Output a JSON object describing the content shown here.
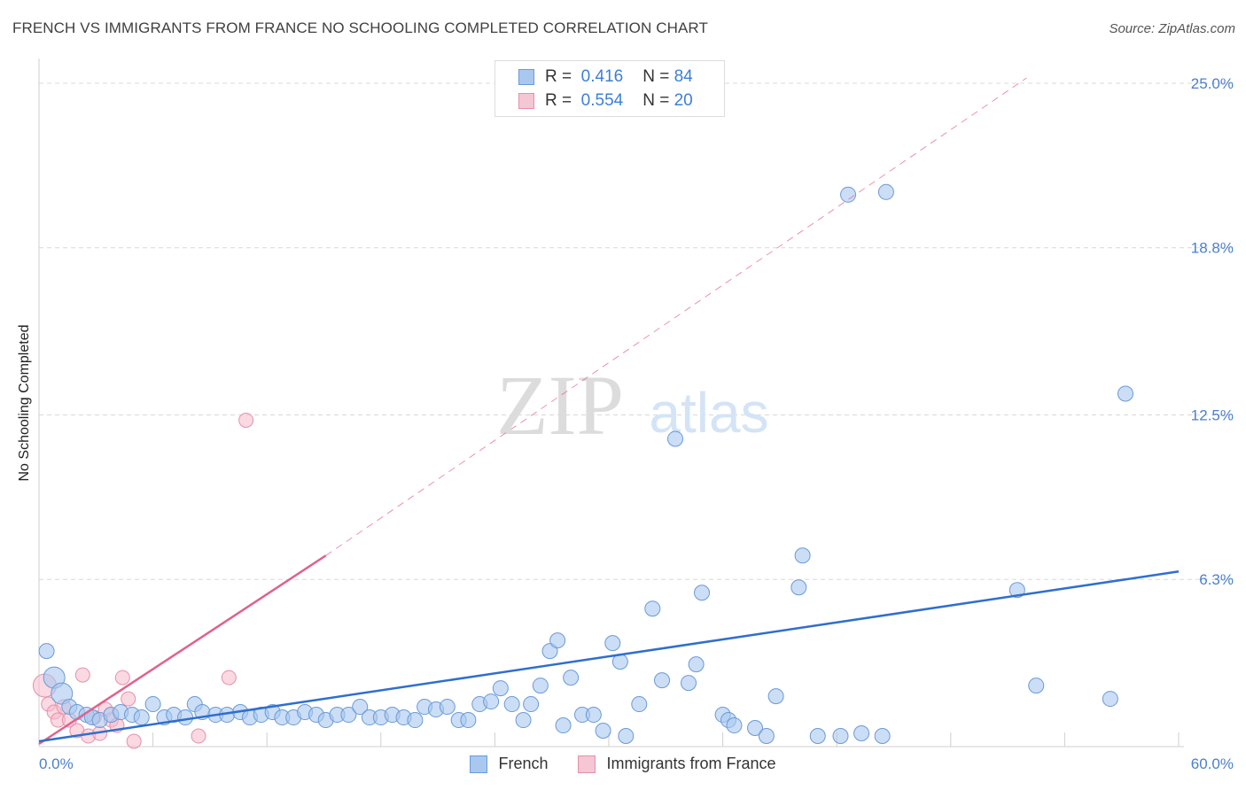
{
  "title": "FRENCH VS IMMIGRANTS FROM FRANCE NO SCHOOLING COMPLETED CORRELATION CHART",
  "source": "Source: ZipAtlas.com",
  "watermark": {
    "zip": "ZIP",
    "atlas": "atlas"
  },
  "legend": {
    "rows": [
      {
        "r_label": "R =",
        "r_value": "0.416",
        "n_label": "N =",
        "n_value": "84"
      },
      {
        "r_label": "R =",
        "r_value": "0.554",
        "n_label": "N =",
        "n_value": "20"
      }
    ]
  },
  "colors": {
    "french_fill": "#a9c8f0",
    "french_stroke": "#6a9ad8",
    "french_line": "#2f6fcd",
    "imm_fill": "#f5b9cb",
    "imm_stroke": "#e690aa",
    "imm_line": "#e0628a",
    "grid": "#d8d8d8",
    "tick_text": "#4a7fcf"
  },
  "chart_data": {
    "type": "scatter",
    "title": "FRENCH VS IMMIGRANTS FROM FRANCE NO SCHOOLING COMPLETED CORRELATION CHART",
    "xlabel": "",
    "ylabel": "No Schooling Completed",
    "xlim": [
      0,
      60
    ],
    "ylim": [
      0,
      25.8
    ],
    "x_tick_labels": [
      "0.0%",
      "60.0%"
    ],
    "y_ticks": [
      6.3,
      12.5,
      18.8,
      25.0
    ],
    "y_tick_labels": [
      "6.3%",
      "12.5%",
      "18.8%",
      "25.0%"
    ],
    "legend_position": "bottom-center",
    "series": [
      {
        "name": "French",
        "R": 0.416,
        "N": 84,
        "trend": {
          "x0": 0,
          "y0": 0.2,
          "x1": 60,
          "y1": 6.6
        },
        "points": [
          [
            0.4,
            3.6
          ],
          [
            0.8,
            2.6
          ],
          [
            1.2,
            2.0
          ],
          [
            1.6,
            1.5
          ],
          [
            2.0,
            1.3
          ],
          [
            2.5,
            1.2
          ],
          [
            2.8,
            1.1
          ],
          [
            3.2,
            1.0
          ],
          [
            3.8,
            1.2
          ],
          [
            4.3,
            1.3
          ],
          [
            4.9,
            1.2
          ],
          [
            5.4,
            1.1
          ],
          [
            6.0,
            1.6
          ],
          [
            6.6,
            1.1
          ],
          [
            7.1,
            1.2
          ],
          [
            7.7,
            1.1
          ],
          [
            8.2,
            1.6
          ],
          [
            8.6,
            1.3
          ],
          [
            9.3,
            1.2
          ],
          [
            9.9,
            1.2
          ],
          [
            10.6,
            1.3
          ],
          [
            11.1,
            1.1
          ],
          [
            11.7,
            1.2
          ],
          [
            12.3,
            1.3
          ],
          [
            12.8,
            1.1
          ],
          [
            13.4,
            1.1
          ],
          [
            14.0,
            1.3
          ],
          [
            14.6,
            1.2
          ],
          [
            15.1,
            1.0
          ],
          [
            15.7,
            1.2
          ],
          [
            16.3,
            1.2
          ],
          [
            16.9,
            1.5
          ],
          [
            17.4,
            1.1
          ],
          [
            18.0,
            1.1
          ],
          [
            18.6,
            1.2
          ],
          [
            19.2,
            1.1
          ],
          [
            19.8,
            1.0
          ],
          [
            20.3,
            1.5
          ],
          [
            20.9,
            1.4
          ],
          [
            21.5,
            1.5
          ],
          [
            22.1,
            1.0
          ],
          [
            22.6,
            1.0
          ],
          [
            23.2,
            1.6
          ],
          [
            23.8,
            1.7
          ],
          [
            24.3,
            2.2
          ],
          [
            24.9,
            1.6
          ],
          [
            25.5,
            1.0
          ],
          [
            25.9,
            1.6
          ],
          [
            26.4,
            2.3
          ],
          [
            26.9,
            3.6
          ],
          [
            27.3,
            4.0
          ],
          [
            27.6,
            0.8
          ],
          [
            28.0,
            2.6
          ],
          [
            28.6,
            1.2
          ],
          [
            29.2,
            1.2
          ],
          [
            29.7,
            0.6
          ],
          [
            30.2,
            3.9
          ],
          [
            30.6,
            3.2
          ],
          [
            30.9,
            0.4
          ],
          [
            31.6,
            1.6
          ],
          [
            32.3,
            5.2
          ],
          [
            32.8,
            2.5
          ],
          [
            33.5,
            11.6
          ],
          [
            34.2,
            2.4
          ],
          [
            34.6,
            3.1
          ],
          [
            34.9,
            5.8
          ],
          [
            36.0,
            1.2
          ],
          [
            36.3,
            1.0
          ],
          [
            36.6,
            0.8
          ],
          [
            37.7,
            0.7
          ],
          [
            38.3,
            0.4
          ],
          [
            38.8,
            1.9
          ],
          [
            40.0,
            6.0
          ],
          [
            40.2,
            7.2
          ],
          [
            41.0,
            0.4
          ],
          [
            42.2,
            0.4
          ],
          [
            42.6,
            20.8
          ],
          [
            43.3,
            0.5
          ],
          [
            44.4,
            0.4
          ],
          [
            44.6,
            20.9
          ],
          [
            51.5,
            5.9
          ],
          [
            52.5,
            2.3
          ],
          [
            56.4,
            1.8
          ],
          [
            57.2,
            13.3
          ]
        ]
      },
      {
        "name": "Immigrants from France",
        "R": 0.554,
        "N": 20,
        "trend": {
          "x0": 0,
          "y0": 0.1,
          "x1": 15.1,
          "y1": 7.2
        },
        "trend_dashed_extension": {
          "x0": 15.1,
          "y0": 7.2,
          "x1": 52.0,
          "y1": 25.2
        },
        "points": [
          [
            0.3,
            2.3
          ],
          [
            0.5,
            1.6
          ],
          [
            0.8,
            1.3
          ],
          [
            1.0,
            1.0
          ],
          [
            1.3,
            1.5
          ],
          [
            1.6,
            1.0
          ],
          [
            2.0,
            0.6
          ],
          [
            2.3,
            2.7
          ],
          [
            2.6,
            0.4
          ],
          [
            2.9,
            1.1
          ],
          [
            3.2,
            0.5
          ],
          [
            3.5,
            1.4
          ],
          [
            3.8,
            1.0
          ],
          [
            4.1,
            0.8
          ],
          [
            4.4,
            2.6
          ],
          [
            4.7,
            1.8
          ],
          [
            5.0,
            0.2
          ],
          [
            8.4,
            0.4
          ],
          [
            10.0,
            2.6
          ],
          [
            10.9,
            12.3
          ]
        ]
      }
    ]
  },
  "bottom_legend": [
    {
      "label": "French"
    },
    {
      "label": "Immigrants from France"
    }
  ]
}
